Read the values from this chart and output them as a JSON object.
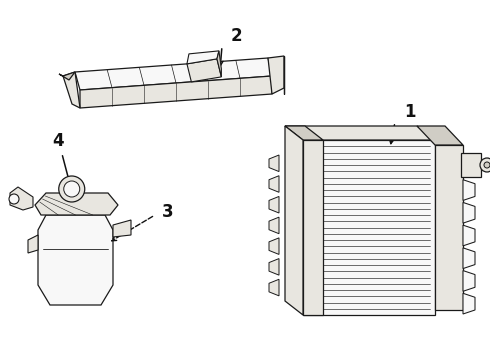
{
  "background_color": "#ffffff",
  "line_color": "#1a1a1a",
  "figsize": [
    4.9,
    3.6
  ],
  "dpi": 100,
  "arrow_color": "#111111",
  "face_light": "#f8f8f8",
  "face_mid": "#e8e6e0",
  "face_dark": "#d0cdc5"
}
